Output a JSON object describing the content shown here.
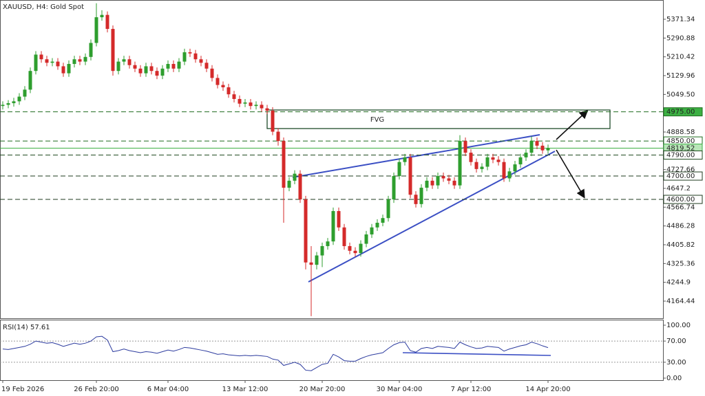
{
  "chart_data": [
    {
      "type": "candlestick",
      "title": "XAUUSD, H4:  Gold Spot",
      "annotation": "FVG",
      "up_color": "#2e9e2e",
      "down_color": "#d42a2a",
      "categories": [
        "19 Feb 2026",
        null,
        null,
        null,
        null,
        null,
        null,
        null,
        null,
        null,
        null,
        null,
        null,
        null,
        null,
        null,
        null,
        "26 Feb 20:00",
        null,
        null,
        null,
        null,
        null,
        null,
        null,
        null,
        null,
        null,
        null,
        null,
        "6 Mar 04:00",
        null,
        null,
        null,
        null,
        null,
        null,
        null,
        null,
        null,
        null,
        null,
        null,
        null,
        "13 Mar 12:00",
        null,
        null,
        null,
        null,
        null,
        null,
        null,
        null,
        null,
        null,
        null,
        null,
        null,
        "20 Mar 20:00",
        null,
        null,
        null,
        null,
        null,
        null,
        null,
        null,
        null,
        null,
        null,
        null,
        null,
        "30 Mar 04:00",
        null,
        null,
        null,
        null,
        null,
        null,
        null,
        null,
        null,
        null,
        null,
        null,
        "7 Apr 12:00",
        null,
        null,
        null,
        null,
        null,
        null,
        null,
        null,
        null,
        null,
        null,
        null,
        null,
        "14 Apr 20:00"
      ],
      "open": [
        5000,
        5005,
        5012,
        5020,
        5040,
        5070,
        5150,
        5220,
        5200,
        5185,
        5190,
        5170,
        5140,
        5180,
        5200,
        5190,
        5210,
        5270,
        5380,
        5390,
        5330,
        5150,
        5190,
        5200,
        5175,
        5160,
        5140,
        5170,
        5150,
        5130,
        5160,
        5180,
        5160,
        5190,
        5230,
        5225,
        5200,
        5185,
        5160,
        5120,
        5090,
        5080,
        5050,
        5030,
        5010,
        5015,
        5000,
        5005,
        4990,
        4980,
        4890,
        4850,
        4650,
        4680,
        4710,
        4600,
        4330,
        4320,
        4360,
        4400,
        4420,
        4550,
        4480,
        4400,
        4380,
        4370,
        4410,
        4450,
        4480,
        4500,
        4520,
        4600,
        4700,
        4760,
        4780,
        4620,
        4580,
        4650,
        4680,
        4660,
        4700,
        4690,
        4680,
        4660,
        4850,
        4800,
        4760,
        4730,
        4740,
        4780,
        4770,
        4760,
        4690,
        4720,
        4750,
        4780,
        4800,
        4850,
        4830,
        4810
      ],
      "high": [
        5020,
        5025,
        5035,
        5055,
        5085,
        5165,
        5235,
        5235,
        5215,
        5205,
        5205,
        5185,
        5195,
        5215,
        5215,
        5225,
        5285,
        5440,
        5410,
        5405,
        5345,
        5205,
        5215,
        5215,
        5190,
        5175,
        5185,
        5185,
        5165,
        5175,
        5195,
        5195,
        5205,
        5245,
        5245,
        5240,
        5215,
        5200,
        5175,
        5135,
        5105,
        5095,
        5065,
        5045,
        5030,
        5030,
        5020,
        5020,
        5005,
        4995,
        4905,
        4865,
        4695,
        4725,
        4725,
        4615,
        4400,
        4375,
        4415,
        4435,
        4565,
        4565,
        4495,
        4415,
        4395,
        4425,
        4465,
        4495,
        4515,
        4535,
        4615,
        4715,
        4775,
        4795,
        4795,
        4635,
        4665,
        4695,
        4695,
        4715,
        4715,
        4705,
        4695,
        4875,
        4865,
        4815,
        4775,
        4755,
        4795,
        4795,
        4785,
        4775,
        4735,
        4765,
        4795,
        4815,
        4870,
        4865,
        4845,
        4835
      ],
      "low": [
        4985,
        4990,
        4997,
        5005,
        5025,
        5055,
        5135,
        5185,
        5170,
        5170,
        5155,
        5125,
        5125,
        5165,
        5175,
        5175,
        5195,
        5255,
        5365,
        5315,
        5130,
        5135,
        5175,
        5160,
        5145,
        5125,
        5125,
        5135,
        5115,
        5115,
        5145,
        5145,
        5145,
        5175,
        5210,
        5185,
        5170,
        5145,
        5105,
        5075,
        5065,
        5035,
        5015,
        4995,
        4995,
        4985,
        4985,
        4975,
        4965,
        4875,
        4830,
        4500,
        4635,
        4665,
        4585,
        4300,
        4100,
        4300,
        4310,
        4385,
        4405,
        4465,
        4385,
        4365,
        4355,
        4355,
        4395,
        4435,
        4465,
        4485,
        4505,
        4585,
        4685,
        4745,
        4605,
        4565,
        4565,
        4635,
        4645,
        4645,
        4675,
        4665,
        4645,
        4645,
        4785,
        4745,
        4715,
        4715,
        4725,
        4755,
        4745,
        4675,
        4675,
        4705,
        4735,
        4765,
        4785,
        4815,
        4795,
        4795
      ],
      "close": [
        5005,
        5012,
        5020,
        5040,
        5070,
        5150,
        5220,
        5200,
        5185,
        5190,
        5170,
        5140,
        5180,
        5200,
        5190,
        5210,
        5270,
        5380,
        5390,
        5330,
        5150,
        5190,
        5200,
        5175,
        5160,
        5140,
        5170,
        5150,
        5130,
        5160,
        5180,
        5160,
        5190,
        5230,
        5225,
        5200,
        5185,
        5160,
        5120,
        5090,
        5080,
        5050,
        5030,
        5010,
        5015,
        5000,
        5005,
        4990,
        4980,
        4890,
        4850,
        4650,
        4680,
        4710,
        4600,
        4330,
        4320,
        4360,
        4400,
        4420,
        4550,
        4480,
        4400,
        4380,
        4370,
        4410,
        4450,
        4480,
        4500,
        4520,
        4600,
        4700,
        4760,
        4780,
        4620,
        4580,
        4650,
        4680,
        4660,
        4700,
        4690,
        4680,
        4660,
        4850,
        4800,
        4760,
        4730,
        4740,
        4780,
        4770,
        4760,
        4690,
        4720,
        4750,
        4780,
        4800,
        4850,
        4830,
        4810,
        4819.52
      ],
      "ylim": [
        4090.8,
        5453.8
      ],
      "yticks": [
        5371.34,
        5290.88,
        5210.42,
        5129.96,
        {
          "value": 5049.5,
          "label": "5049.50"
        },
        4888.58,
        4727.66,
        4647.2,
        4566.74,
        4486.28,
        4405.82,
        4325.36,
        4244.9,
        4164.44
      ],
      "levels": [
        {
          "value": 4975,
          "label": "4975.00",
          "color": "#1e6b1e",
          "fill": "#3cb043",
          "dash": true
        },
        {
          "value": 4850,
          "label": "4850.00",
          "color": "#1e6b1e",
          "fill": "#ffffff",
          "dash": true
        },
        {
          "value": 4819.52,
          "label": "4819.52",
          "color": "#3cb043",
          "fill": "#b8e6b8",
          "dash": false
        },
        {
          "value": 4790,
          "label": "4790.00",
          "color": "#1e4a1e",
          "fill": "#ffffff",
          "dash": true
        },
        {
          "value": 4700,
          "label": "4700.00",
          "color": "#1e3a1e",
          "fill": "#ffffff",
          "dash": true
        },
        {
          "value": 4600,
          "label": "4600.00",
          "color": "#1e3a1e",
          "fill": "#ffffff",
          "dash": true
        }
      ]
    },
    {
      "type": "line",
      "title": "RSI(14) 57.61",
      "color": "#2b3a9e",
      "values": [
        55,
        54,
        56,
        58,
        60,
        64,
        70,
        68,
        66,
        67,
        64,
        60,
        63,
        66,
        64,
        66,
        70,
        78,
        79,
        72,
        50,
        52,
        55,
        52,
        50,
        48,
        50,
        49,
        47,
        50,
        53,
        51,
        54,
        58,
        57,
        55,
        53,
        51,
        48,
        45,
        46,
        44,
        43,
        42,
        43,
        42,
        43,
        42,
        41,
        36,
        34,
        24,
        27,
        30,
        26,
        15,
        14,
        20,
        26,
        28,
        45,
        40,
        33,
        32,
        32,
        37,
        41,
        44,
        46,
        48,
        56,
        63,
        67,
        68,
        52,
        49,
        56,
        58,
        56,
        60,
        59,
        58,
        56,
        68,
        63,
        59,
        56,
        57,
        60,
        59,
        58,
        51,
        55,
        58,
        61,
        63,
        68,
        65,
        61,
        57.61
      ],
      "ylim": [
        -3.9,
        110.4
      ],
      "yticks": [
        {
          "value": 100,
          "label": "100.00"
        },
        {
          "value": 70,
          "label": "70.00"
        },
        {
          "value": 30,
          "label": "30.00"
        },
        {
          "value": 0,
          "label": "0.00"
        }
      ]
    }
  ]
}
